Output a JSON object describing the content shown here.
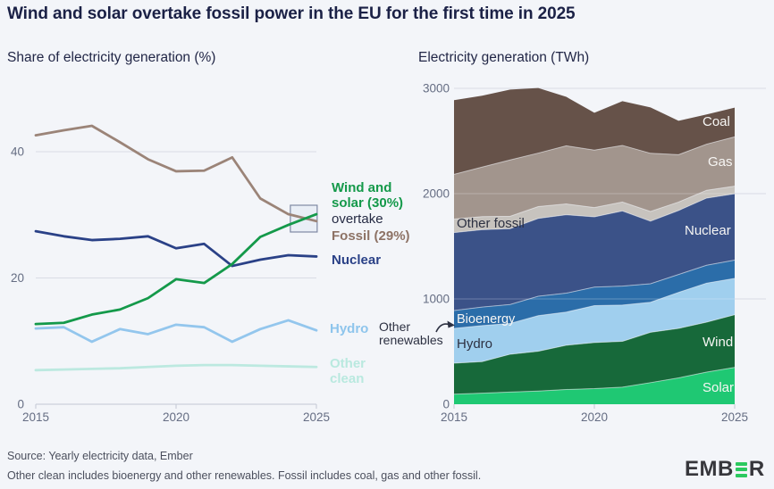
{
  "title": "Wind and solar overtake fossil power in the EU for the first time in 2025",
  "colors": {
    "background": "#f3f5f9",
    "grid": "#d9dce5",
    "axis": "#c3c8d4",
    "tick_text": "#656d83",
    "title_text": "#1b2146",
    "highlight_box_fill": "#e9eef6",
    "highlight_box_border": "#7e89a3",
    "wind_solar_green": "#14994a",
    "fossil_brown": "#8d7265",
    "nuclear_navy": "#2a4187",
    "hydro_blue": "#8ec5ec",
    "other_clean_mint": "#b9e9df",
    "logo_green": "#2bc95f"
  },
  "chart_data": [
    {
      "type": "line",
      "title": "Share of electricity generation (%)",
      "xlabel": "",
      "ylabel": "Share of electricity generation (%)",
      "x": [
        2015,
        2016,
        2017,
        2018,
        2019,
        2020,
        2021,
        2022,
        2023,
        2024,
        2025
      ],
      "x_ticks": [
        2015,
        2020,
        2025
      ],
      "y_ticks": [
        0,
        20,
        40
      ],
      "ylim": [
        0,
        52
      ],
      "grid": "horizontal",
      "series": [
        {
          "name": "Other clean",
          "color": "#bce9e0",
          "values": [
            5.4,
            5.5,
            5.6,
            5.7,
            5.9,
            6.1,
            6.2,
            6.2,
            6.1,
            6.0,
            5.9
          ]
        },
        {
          "name": "Hydro",
          "color": "#93c6ed",
          "values": [
            12.0,
            12.2,
            9.9,
            11.9,
            11.1,
            12.6,
            12.2,
            9.9,
            11.9,
            13.3,
            11.7
          ]
        },
        {
          "name": "Fossil",
          "color": "#9b8478",
          "values": [
            42.6,
            43.4,
            44.1,
            41.5,
            38.8,
            36.9,
            37.0,
            39.1,
            32.6,
            30.1,
            29.0
          ]
        },
        {
          "name": "Nuclear",
          "color": "#2a4187",
          "values": [
            27.4,
            26.6,
            26.0,
            26.2,
            26.6,
            24.7,
            25.4,
            21.9,
            22.9,
            23.6,
            23.4
          ]
        },
        {
          "name": "Wind and solar",
          "color": "#14994a",
          "values": [
            12.7,
            12.9,
            14.2,
            15.0,
            16.8,
            19.8,
            19.2,
            22.2,
            26.5,
            28.4,
            30.1
          ]
        }
      ],
      "legend": {
        "position": "right",
        "wind_solar": "Wind and solar (30%)",
        "overtake": "overtake",
        "fossil": "Fossil (29%)",
        "nuclear": "Nuclear",
        "hydro": "Hydro",
        "other_clean": "Other clean"
      },
      "highlight_box": {
        "year": 2024.55,
        "value": 29.4
      }
    },
    {
      "type": "area",
      "title": "Electricity generation (TWh)",
      "xlabel": "",
      "ylabel": "Electricity generation (TWh)",
      "x": [
        2015,
        2016,
        2017,
        2018,
        2019,
        2020,
        2021,
        2022,
        2023,
        2024,
        2025
      ],
      "x_ticks": [
        2015,
        2020,
        2025
      ],
      "y_ticks": [
        0,
        1000,
        2000,
        3000
      ],
      "ylim": [
        0,
        3000
      ],
      "grid": "horizontal",
      "stacked": true,
      "series": [
        {
          "name": "Solar",
          "color": "#1fc873",
          "values": [
            95,
            105,
            115,
            125,
            140,
            148,
            162,
            205,
            250,
            305,
            350
          ]
        },
        {
          "name": "Wind",
          "color": "#17693a",
          "values": [
            295,
            300,
            360,
            378,
            420,
            438,
            435,
            478,
            470,
            475,
            500
          ]
        },
        {
          "name": "Hydro",
          "color": "#a0cfee",
          "values": [
            330,
            342,
            292,
            338,
            315,
            350,
            345,
            285,
            342,
            370,
            345
          ]
        },
        {
          "name": "Bioenergy",
          "color": "#2b6da9",
          "values": [
            170,
            176,
            180,
            184,
            180,
            176,
            180,
            176,
            170,
            170,
            174
          ]
        },
        {
          "name": "Nuclear",
          "color": "#3b5288",
          "values": [
            740,
            735,
            720,
            740,
            745,
            668,
            714,
            595,
            608,
            638,
            630
          ]
        },
        {
          "name": "Other fossil",
          "color": "#c7c3be",
          "values": [
            128,
            124,
            118,
            112,
            102,
            88,
            84,
            92,
            80,
            74,
            72
          ]
        },
        {
          "name": "Gas",
          "color": "#a2958d",
          "values": [
            425,
            470,
            535,
            508,
            552,
            545,
            538,
            552,
            450,
            438,
            468
          ]
        },
        {
          "name": "Coal",
          "color": "#665249",
          "values": [
            705,
            678,
            668,
            618,
            465,
            355,
            420,
            436,
            322,
            282,
            278
          ]
        }
      ],
      "area_labels": {
        "coal": "Coal",
        "gas": "Gas",
        "other_fossil": "Other fossil",
        "nuclear": "Nuclear",
        "bioenergy": "Bioenergy",
        "hydro": "Hydro",
        "wind": "Wind",
        "solar": "Solar"
      },
      "annotation": {
        "other_renewables": "Other renewables"
      }
    }
  ],
  "footer": {
    "source": "Source: Yearly electricity data, Ember",
    "note": "Other clean includes bioenergy and other renewables. Fossil includes coal, gas and other fossil.",
    "logo_prefix": "EMB",
    "logo_suffix": "R"
  }
}
